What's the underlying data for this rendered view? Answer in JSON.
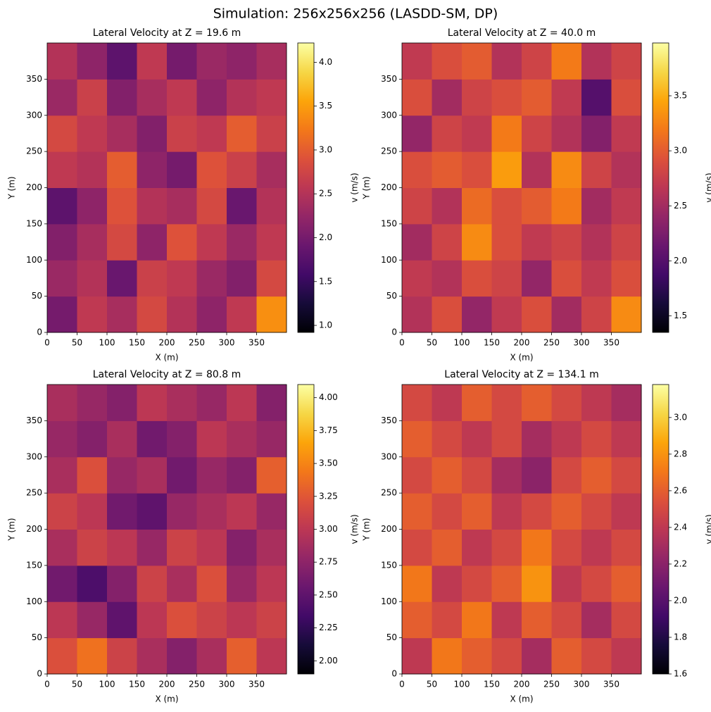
{
  "title": "Simulation: 256x256x256 (LASDD-SM, DP)",
  "chart_data": [
    {
      "type": "heatmap",
      "title": "Lateral Velocity at Z = 19.6 m",
      "xlabel": "X (m)",
      "ylabel": "Y (m)",
      "colorbar_label": "v (m/s)",
      "colormap": "inferno",
      "xlim": [
        0,
        400
      ],
      "ylim": [
        0,
        400
      ],
      "xticks": [
        0,
        50,
        100,
        150,
        200,
        250,
        300,
        350
      ],
      "yticks": [
        0,
        50,
        100,
        150,
        200,
        250,
        300,
        350
      ],
      "clim": [
        0.92,
        4.22
      ],
      "cticks": [
        {
          "value": 1,
          "label": "1.0"
        },
        1.5,
        {
          "value": 2,
          "label": "2.0"
        },
        2.5,
        {
          "value": 3,
          "label": "3.0"
        },
        3.5,
        {
          "value": 4,
          "label": "4.0"
        }
      ],
      "z": [
        [
          2.0,
          2.6,
          2.4,
          2.8,
          2.5,
          2.2,
          2.6,
          3.4
        ],
        [
          2.3,
          2.5,
          1.9,
          2.7,
          2.6,
          2.3,
          2.1,
          2.8
        ],
        [
          2.1,
          2.4,
          2.8,
          2.2,
          2.9,
          2.6,
          2.3,
          2.6
        ],
        [
          1.8,
          2.2,
          2.9,
          2.5,
          2.4,
          2.8,
          1.9,
          2.5
        ],
        [
          2.6,
          2.5,
          3.0,
          2.2,
          2.0,
          2.9,
          2.7,
          2.4
        ],
        [
          2.8,
          2.6,
          2.4,
          2.1,
          2.7,
          2.6,
          3.0,
          2.7
        ],
        [
          2.3,
          2.7,
          2.1,
          2.4,
          2.6,
          2.2,
          2.5,
          2.6
        ],
        [
          2.5,
          2.2,
          1.8,
          2.6,
          2.0,
          2.3,
          2.2,
          2.4
        ]
      ]
    },
    {
      "type": "heatmap",
      "title": "Lateral Velocity at Z = 40.0 m",
      "xlabel": "X (m)",
      "ylabel": "Y (m)",
      "colorbar_label": "v (m/s)",
      "colormap": "inferno",
      "xlim": [
        0,
        400
      ],
      "ylim": [
        0,
        400
      ],
      "xticks": [
        0,
        50,
        100,
        150,
        200,
        250,
        300,
        350
      ],
      "yticks": [
        0,
        50,
        100,
        150,
        200,
        250,
        300,
        350
      ],
      "clim": [
        1.35,
        3.98
      ],
      "cticks": [
        1.5,
        {
          "value": 2,
          "label": "2.0"
        },
        2.5,
        {
          "value": 3,
          "label": "3.0"
        },
        3.5
      ],
      "z": [
        [
          2.6,
          2.9,
          2.4,
          2.7,
          2.9,
          2.5,
          2.8,
          3.3
        ],
        [
          2.7,
          2.6,
          2.9,
          2.8,
          2.4,
          2.9,
          2.7,
          2.9
        ],
        [
          2.5,
          2.8,
          3.3,
          2.9,
          2.7,
          2.8,
          2.6,
          2.8
        ],
        [
          2.8,
          2.6,
          3.1,
          2.9,
          3.0,
          3.2,
          2.5,
          2.7
        ],
        [
          2.9,
          3.0,
          2.9,
          3.4,
          2.6,
          3.3,
          2.8,
          2.6
        ],
        [
          2.4,
          2.8,
          2.7,
          3.2,
          2.8,
          2.6,
          2.3,
          2.7
        ],
        [
          2.9,
          2.5,
          2.8,
          2.9,
          3.0,
          2.7,
          2.0,
          2.9
        ],
        [
          2.7,
          2.9,
          3.0,
          2.6,
          2.8,
          3.2,
          2.6,
          2.8
        ]
      ]
    },
    {
      "type": "heatmap",
      "title": "Lateral Velocity at Z = 80.8 m",
      "xlabel": "X (m)",
      "ylabel": "Y (m)",
      "colorbar_label": "v (m/s)",
      "colormap": "inferno",
      "xlim": [
        0,
        400
      ],
      "ylim": [
        0,
        400
      ],
      "xticks": [
        0,
        50,
        100,
        150,
        200,
        250,
        300,
        350
      ],
      "yticks": [
        0,
        50,
        100,
        150,
        200,
        250,
        300,
        350
      ],
      "clim": [
        1.9,
        4.1
      ],
      "cticks": [
        {
          "value": 2,
          "label": "2.00"
        },
        2.25,
        {
          "value": 2.5,
          "label": "2.50"
        },
        2.75,
        {
          "value": 3,
          "label": "3.00"
        },
        3.25,
        {
          "value": 3.5,
          "label": "3.50"
        },
        3.75,
        {
          "value": 4,
          "label": "4.00"
        }
      ],
      "z": [
        [
          3.2,
          3.4,
          3.1,
          2.9,
          2.7,
          2.9,
          3.3,
          3.0
        ],
        [
          3.0,
          2.8,
          2.5,
          3.0,
          3.2,
          3.1,
          3.0,
          3.1
        ],
        [
          2.6,
          2.4,
          2.7,
          3.1,
          2.9,
          3.2,
          2.8,
          3.0
        ],
        [
          2.9,
          3.1,
          3.0,
          2.8,
          3.1,
          3.0,
          2.7,
          2.9
        ],
        [
          3.1,
          3.0,
          2.6,
          2.5,
          2.8,
          2.9,
          3.0,
          2.8
        ],
        [
          2.9,
          3.2,
          2.8,
          2.9,
          2.6,
          2.8,
          2.7,
          3.3
        ],
        [
          2.8,
          2.7,
          2.9,
          2.6,
          2.7,
          3.0,
          2.9,
          2.8
        ],
        [
          2.9,
          2.8,
          2.7,
          3.0,
          2.9,
          2.8,
          3.0,
          2.7
        ]
      ]
    },
    {
      "type": "heatmap",
      "title": "Lateral Velocity at Z = 134.1 m",
      "xlabel": "X (m)",
      "ylabel": "Y (m)",
      "colorbar_label": "v (m/s)",
      "colormap": "inferno",
      "xlim": [
        0,
        400
      ],
      "ylim": [
        0,
        400
      ],
      "xticks": [
        0,
        50,
        100,
        150,
        200,
        250,
        300,
        350
      ],
      "yticks": [
        0,
        50,
        100,
        150,
        200,
        250,
        300,
        350
      ],
      "clim": [
        1.6,
        3.18
      ],
      "cticks": [
        1.6,
        1.8,
        {
          "value": 2,
          "label": "2.0"
        },
        2.2,
        2.4,
        2.6,
        2.8,
        {
          "value": 3,
          "label": "3.0"
        }
      ],
      "z": [
        [
          2.4,
          2.7,
          2.6,
          2.5,
          2.3,
          2.6,
          2.5,
          2.4
        ],
        [
          2.6,
          2.5,
          2.7,
          2.4,
          2.6,
          2.5,
          2.3,
          2.5
        ],
        [
          2.7,
          2.4,
          2.5,
          2.6,
          2.8,
          2.4,
          2.5,
          2.6
        ],
        [
          2.5,
          2.6,
          2.4,
          2.5,
          2.7,
          2.5,
          2.4,
          2.5
        ],
        [
          2.6,
          2.5,
          2.6,
          2.4,
          2.5,
          2.6,
          2.5,
          2.4
        ],
        [
          2.5,
          2.6,
          2.5,
          2.3,
          2.2,
          2.5,
          2.6,
          2.5
        ],
        [
          2.6,
          2.5,
          2.4,
          2.5,
          2.3,
          2.4,
          2.5,
          2.4
        ],
        [
          2.5,
          2.4,
          2.6,
          2.5,
          2.6,
          2.5,
          2.4,
          2.3
        ]
      ]
    }
  ]
}
